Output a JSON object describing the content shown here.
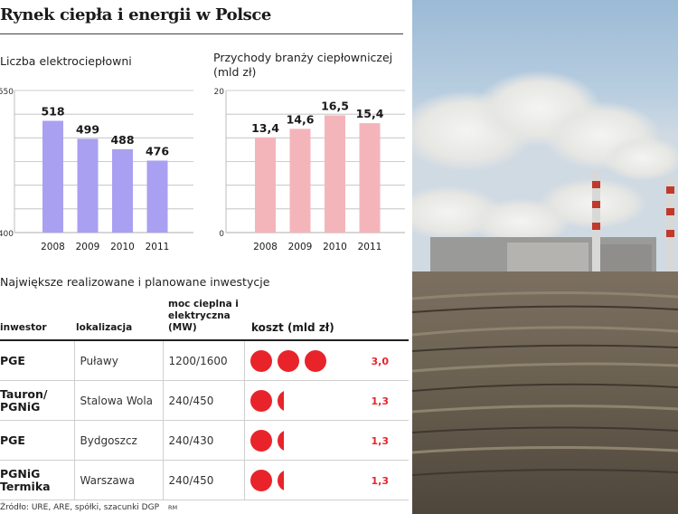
{
  "title": "Rynek ciepła i energii w Polsce",
  "source": "Źródło: URE, ARE, spółki, szacunki DGP",
  "credit": "RM",
  "colors": {
    "bars_left": "#a9a0f1",
    "bars_right": "#f4b5ba",
    "cost_dot": "#e8242a"
  },
  "chart_data": [
    {
      "type": "bar",
      "title": "Liczba elektrociepłowni",
      "categories": [
        "2008",
        "2009",
        "2010",
        "2011"
      ],
      "values": [
        518,
        499,
        488,
        476
      ],
      "value_labels": [
        "518",
        "499",
        "488",
        "476"
      ],
      "ylim": [
        400,
        550
      ],
      "y_ticks": [
        "550",
        "400"
      ],
      "grid": true
    },
    {
      "type": "bar",
      "title": "Przychody branży ciepłowniczej (mld zł)",
      "categories": [
        "2008",
        "2009",
        "2010",
        "2011"
      ],
      "values": [
        13.4,
        14.6,
        16.5,
        15.4
      ],
      "value_labels": [
        "13,4",
        "14,6",
        "16,5",
        "15,4"
      ],
      "ylim": [
        0,
        20
      ],
      "y_ticks": [
        "20",
        "0"
      ],
      "grid": true
    },
    {
      "type": "table",
      "title": "Największe realizowane i planowane inwestycje",
      "columns": [
        "inwestor",
        "lokalizacja",
        "moc cieplna i elektryczna (MW)",
        "koszt (mld zł)"
      ],
      "rows": [
        {
          "investor": "PGE",
          "location": "Puławy",
          "power": "1200/1600",
          "cost": 3.0,
          "cost_label": "3,0"
        },
        {
          "investor": "Tauron/ PGNiG",
          "location": "Stalowa Wola",
          "power": "240/450",
          "cost": 1.3,
          "cost_label": "1,3"
        },
        {
          "investor": "PGE",
          "location": "Bydgoszcz",
          "power": "240/430",
          "cost": 1.3,
          "cost_label": "1,3"
        },
        {
          "investor": "PGNiG Termika",
          "location": "Warszawa",
          "power": "240/450",
          "cost": 1.3,
          "cost_label": "1,3"
        }
      ]
    }
  ],
  "photo": {
    "icon": "power-plant-smokestacks-photo"
  }
}
